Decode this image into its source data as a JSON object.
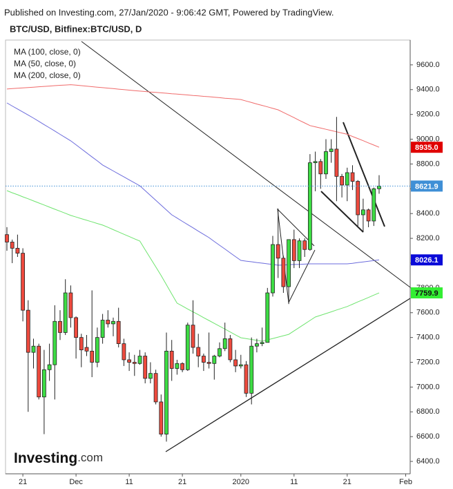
{
  "source": "Published on Investing.com, 27/Jan/2020 - 9:06:42 GMT, Powered by TradingView.",
  "logo": {
    "name": "Investing",
    "suffix": ".com"
  },
  "chart_data": {
    "type": "candlestick",
    "title": "BTC/USD, Bitfinex:BTC/USD, D",
    "categories": [
      null,
      null,
      null,
      "21",
      null,
      null,
      null,
      null,
      null,
      null,
      null,
      null,
      null,
      "Dec",
      null,
      null,
      null,
      null,
      null,
      null,
      null,
      null,
      null,
      "11",
      null,
      null,
      null,
      null,
      null,
      null,
      null,
      null,
      null,
      "21",
      null,
      null,
      null,
      null,
      null,
      null,
      null,
      null,
      null,
      null,
      "2020",
      null,
      null,
      null,
      null,
      null,
      null,
      null,
      null,
      null,
      "11",
      null,
      null,
      null,
      null,
      null,
      null,
      null,
      null,
      null,
      "21",
      null,
      null,
      null,
      null,
      null,
      null,
      null,
      null,
      null,
      null,
      "Feb"
    ],
    "open": [
      8230,
      8170,
      8120,
      8080,
      7620,
      7280,
      7330,
      6920,
      7140,
      7180,
      7530,
      7440,
      7760,
      7560,
      7400,
      7320,
      7290,
      7200,
      7400,
      7540,
      7510,
      7530,
      7350,
      7220,
      7200,
      7190,
      7250,
      7070,
      7110,
      6880,
      6620,
      7290,
      7150,
      7190,
      7140,
      7500,
      7320,
      7250,
      7200,
      7190,
      7250,
      7310,
      7390,
      7220,
      7170,
      7180,
      6950,
      7330,
      7350,
      7360,
      7760,
      8150,
      8040,
      7810,
      8190,
      8020,
      8180,
      8110,
      8810,
      8820,
      8720,
      8900,
      8920,
      8700,
      8630,
      8730,
      8660,
      8390,
      8430,
      8340,
      8600,
      null,
      null,
      null,
      null,
      null
    ],
    "high": [
      8290,
      8190,
      8230,
      8120,
      7700,
      7390,
      7350,
      7300,
      7350,
      7660,
      7620,
      7870,
      7820,
      7570,
      7430,
      7420,
      7780,
      7480,
      7590,
      7620,
      7560,
      7640,
      7390,
      7280,
      7260,
      7300,
      7280,
      7200,
      7140,
      6940,
      7440,
      7380,
      7220,
      7200,
      7520,
      7700,
      7430,
      7270,
      7440,
      7260,
      7360,
      7520,
      7420,
      7300,
      7260,
      7210,
      7400,
      7390,
      7480,
      7800,
      8220,
      8440,
      8060,
      8190,
      8270,
      8200,
      8200,
      8880,
      8900,
      8840,
      9000,
      9000,
      9180,
      8720,
      8770,
      8790,
      8670,
      8520,
      8440,
      8610,
      8710,
      null,
      null,
      null,
      null,
      null
    ],
    "low": [
      8100,
      8000,
      8050,
      7530,
      6800,
      7150,
      6900,
      6620,
      7050,
      6900,
      7380,
      7420,
      7480,
      7230,
      7160,
      7250,
      7080,
      7160,
      7350,
      7480,
      7410,
      7320,
      7170,
      7130,
      7090,
      7180,
      7030,
      7030,
      6860,
      6600,
      6560,
      7050,
      7100,
      7120,
      7130,
      7270,
      7160,
      7130,
      7150,
      7060,
      7240,
      7290,
      7200,
      7120,
      7150,
      6920,
      6860,
      7280,
      7330,
      7360,
      7730,
      7880,
      7760,
      7670,
      7960,
      7960,
      8050,
      8100,
      8580,
      8600,
      8680,
      8810,
      8500,
      8530,
      8500,
      8590,
      8300,
      8250,
      8290,
      8300,
      8560,
      null,
      null,
      null,
      null,
      null
    ],
    "close": [
      8170,
      8120,
      8080,
      7620,
      7280,
      7330,
      6920,
      7140,
      7180,
      7530,
      7440,
      7760,
      7560,
      7400,
      7300,
      7290,
      7200,
      7400,
      7540,
      7510,
      7530,
      7350,
      7220,
      7200,
      7190,
      7250,
      7070,
      7110,
      6880,
      6620,
      7290,
      7150,
      7190,
      7140,
      7500,
      7320,
      7250,
      7200,
      7190,
      7250,
      7310,
      7390,
      7220,
      7170,
      7180,
      6950,
      7330,
      7350,
      7360,
      7760,
      8150,
      8040,
      7810,
      8190,
      8020,
      8180,
      8110,
      8810,
      8820,
      8720,
      8900,
      8920,
      8700,
      8630,
      8730,
      8660,
      8390,
      8430,
      8340,
      8600,
      8621.9,
      null,
      null,
      null,
      null,
      null
    ],
    "up_color": "#3ddc44",
    "down_color": "#ee4a3e",
    "outline_color": "#222222",
    "last_label": "8621.9",
    "last_label_color": "#3f8fd6",
    "series": [
      {
        "name": "MA (100, close, 0)",
        "color": "#6b6bdc",
        "label_color": "#0a0ad8",
        "last_label": "8026.1",
        "values": [
          9293,
          9268,
          9244,
          9219,
          9195,
          9170,
          9144,
          9118,
          9092,
          9066,
          9039,
          9013,
          8987,
          8955,
          8922,
          8890,
          8857,
          8825,
          8792,
          8768,
          8744,
          8720,
          8696,
          8672,
          8648,
          8624,
          8585,
          8546,
          8507,
          8468,
          8429,
          8390,
          8364,
          8337,
          8311,
          8285,
          8258,
          8232,
          8206,
          8175,
          8144,
          8114,
          8083,
          8052,
          8022,
          8016,
          8011,
          8005,
          8000,
          7994,
          7989,
          7983,
          7985,
          7987,
          7989,
          7990,
          7992,
          7994,
          7994,
          7994,
          7994,
          7994,
          7994,
          7994,
          7994,
          7999,
          8005,
          8010,
          8015,
          8021,
          8026.1,
          null,
          null,
          null,
          null,
          null
        ]
      },
      {
        "name": "MA (50, close, 0)",
        "color": "#6ee46e",
        "label_color": "#33ee33",
        "last_label": "7759.9",
        "values": [
          8585,
          8568,
          8552,
          8535,
          8519,
          8502,
          8485,
          8469,
          8452,
          8435,
          8419,
          8402,
          8385,
          8372,
          8359,
          8346,
          8333,
          8320,
          8307,
          8289,
          8270,
          8252,
          8233,
          8215,
          8196,
          8178,
          8108,
          8039,
          7970,
          7900,
          7826,
          7751,
          7677,
          7654,
          7630,
          7607,
          7584,
          7560,
          7537,
          7514,
          7491,
          7468,
          7444,
          7421,
          7398,
          7391,
          7384,
          7377,
          7370,
          7381,
          7392,
          7403,
          7414,
          7425,
          7453,
          7481,
          7509,
          7537,
          7565,
          7579,
          7593,
          7607,
          7622,
          7636,
          7650,
          7668,
          7687,
          7705,
          7723,
          7742,
          7759.9,
          null,
          null,
          null,
          null,
          null
        ]
      },
      {
        "name": "MA (200, close, 0)",
        "color": "#f06a6a",
        "label_color": "#e00000",
        "last_label": "8935.0",
        "values": [
          9405,
          9408,
          9411,
          9414,
          9417,
          9420,
          9423,
          9426,
          9429,
          9432,
          9435,
          9437,
          9440,
          9436,
          9432,
          9428,
          9424,
          9420,
          9416,
          9412,
          9408,
          9404,
          9400,
          9396,
          9392,
          9388,
          9385,
          9381,
          9378,
          9374,
          9371,
          9367,
          9364,
          9360,
          9357,
          9353,
          9350,
          9346,
          9343,
          9339,
          9335,
          9331,
          9328,
          9324,
          9320,
          9308,
          9296,
          9284,
          9273,
          9261,
          9249,
          9237,
          9216,
          9195,
          9174,
          9152,
          9131,
          9110,
          9100,
          9090,
          9080,
          9070,
          9060,
          9050,
          9040,
          9022,
          9005,
          8988,
          8970,
          8953,
          8935,
          null,
          null,
          null,
          null,
          null
        ]
      }
    ],
    "ylim": [
      6300,
      9800
    ],
    "yticks": [
      {
        "value": 6400,
        "label": "6400.0"
      },
      {
        "value": 6600,
        "label": "6600.0"
      },
      {
        "value": 6800,
        "label": "6800.0"
      },
      {
        "value": 7000,
        "label": "7000.0"
      },
      {
        "value": 7200,
        "label": "7200.0"
      },
      {
        "value": 7400,
        "label": "7400.0"
      },
      {
        "value": 7600,
        "label": "7600.0"
      },
      {
        "value": 7800,
        "label": "7800.0"
      },
      {
        "value": 8000,
        "label": "8000.0"
      },
      {
        "value": 8200,
        "label": "8200.0"
      },
      {
        "value": 8400,
        "label": "8400.0"
      },
      {
        "value": 8600,
        "label": "8600.0"
      },
      {
        "value": 8800,
        "label": "8800.0"
      },
      {
        "value": 9000,
        "label": "9000.0"
      },
      {
        "value": 9200,
        "label": "9200.0"
      },
      {
        "value": 9400,
        "label": "9400.0"
      },
      {
        "value": 9600,
        "label": "9600.0"
      }
    ],
    "grid": false
  }
}
